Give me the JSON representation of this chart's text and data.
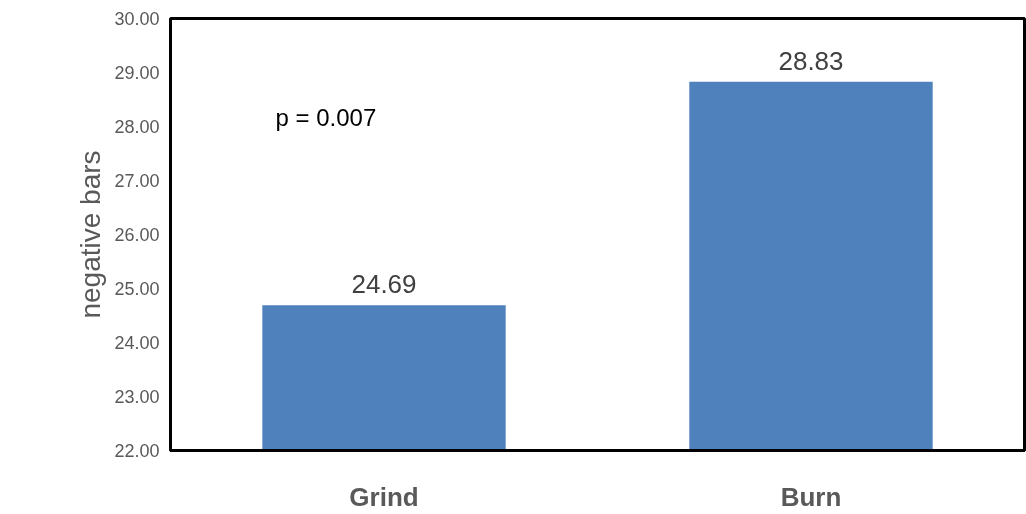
{
  "chart_data": {
    "type": "bar",
    "ylabel": "negative bars",
    "categories": [
      "Grind",
      "Burn"
    ],
    "values": [
      24.69,
      28.83
    ],
    "color": "#4f81bd",
    "ylim": [
      22,
      30
    ],
    "yticks": [
      {
        "value": 22,
        "label": "22.00"
      },
      {
        "value": 23,
        "label": "23.00"
      },
      {
        "value": 24,
        "label": "24.00"
      },
      {
        "value": 25,
        "label": "25.00"
      },
      {
        "value": 26,
        "label": "26.00"
      },
      {
        "value": 27,
        "label": "27.00"
      },
      {
        "value": 28,
        "label": "28.00"
      },
      {
        "value": 29,
        "label": "29.00"
      },
      {
        "value": 30,
        "label": "30.00"
      }
    ],
    "data_labels": true,
    "grid": false,
    "annotations": [
      "p = 0.007"
    ]
  }
}
